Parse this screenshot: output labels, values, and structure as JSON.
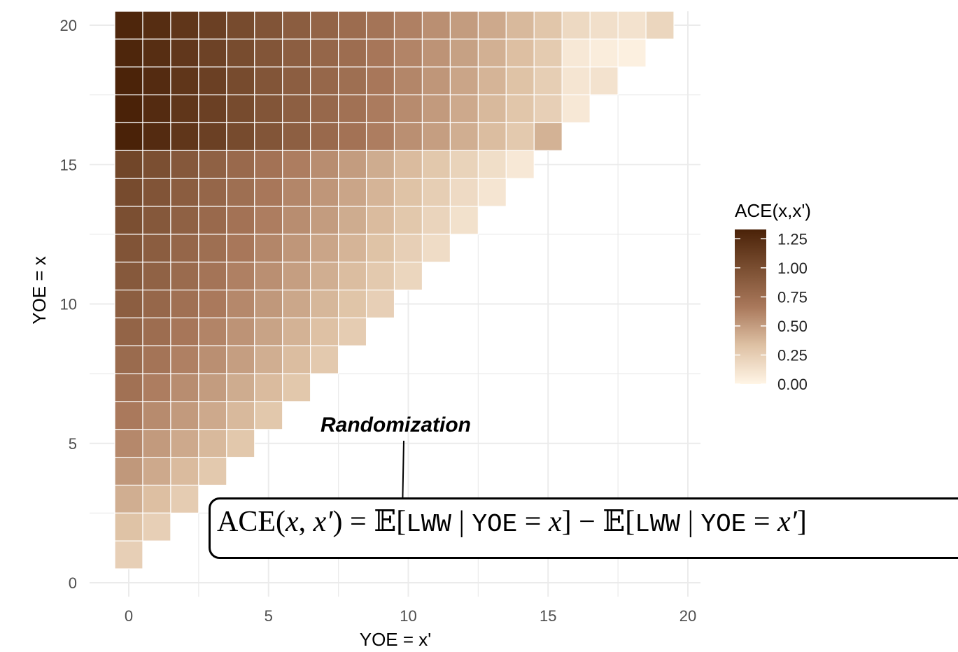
{
  "chart_data": {
    "type": "heatmap",
    "title": "",
    "xlabel": "YOE = x'",
    "ylabel": "YOE = x",
    "x_range": [
      0,
      20
    ],
    "y_range": [
      0,
      20
    ],
    "x_ticks": [
      "0",
      "5",
      "10",
      "15",
      "20"
    ],
    "y_ticks": [
      "0",
      "5",
      "10",
      "15",
      "20"
    ],
    "grid": true,
    "legend": {
      "title": "ACE(x,x')",
      "placement": "right",
      "labels": [
        "1.25",
        "1.00",
        "0.75",
        "0.50",
        "0.25",
        "0.00"
      ],
      "range": [
        0,
        1.33
      ],
      "colors": {
        "low": "#FFF5E6",
        "high": "#4A2208"
      }
    },
    "value_rule": "cell (x', x) drawn only for x' < x",
    "rows": [
      {
        "y": 20,
        "values": [
          1.3,
          1.25,
          1.18,
          1.1,
          1.02,
          0.95,
          0.88,
          0.82,
          0.76,
          0.7,
          0.63,
          0.56,
          0.5,
          0.44,
          0.37,
          0.3,
          0.18,
          0.14,
          0.12,
          0.2
        ]
      },
      {
        "y": 19,
        "values": [
          1.3,
          1.24,
          1.17,
          1.09,
          1.01,
          0.94,
          0.87,
          0.81,
          0.75,
          0.68,
          0.61,
          0.54,
          0.48,
          0.41,
          0.34,
          0.27,
          0.08,
          0.05,
          0.03
        ]
      },
      {
        "y": 18,
        "values": [
          1.32,
          1.26,
          1.18,
          1.1,
          1.02,
          0.94,
          0.87,
          0.8,
          0.74,
          0.67,
          0.6,
          0.53,
          0.46,
          0.39,
          0.32,
          0.25,
          0.1,
          0.12
        ]
      },
      {
        "y": 17,
        "values": [
          1.33,
          1.26,
          1.18,
          1.1,
          1.02,
          0.94,
          0.86,
          0.79,
          0.72,
          0.65,
          0.58,
          0.51,
          0.44,
          0.37,
          0.3,
          0.24,
          0.08
        ]
      },
      {
        "y": 16,
        "values": [
          1.33,
          1.26,
          1.18,
          1.1,
          1.02,
          0.94,
          0.86,
          0.78,
          0.71,
          0.64,
          0.56,
          0.49,
          0.42,
          0.35,
          0.28,
          0.4
        ]
      },
      {
        "y": 15,
        "values": [
          1.06,
          0.99,
          0.92,
          0.85,
          0.78,
          0.71,
          0.64,
          0.57,
          0.5,
          0.43,
          0.36,
          0.29,
          0.22,
          0.15,
          0.08
        ]
      },
      {
        "y": 14,
        "values": [
          1.02,
          0.95,
          0.88,
          0.81,
          0.74,
          0.67,
          0.6,
          0.53,
          0.46,
          0.39,
          0.32,
          0.25,
          0.17,
          0.1
        ]
      },
      {
        "y": 13,
        "values": [
          0.99,
          0.92,
          0.85,
          0.78,
          0.71,
          0.64,
          0.57,
          0.5,
          0.43,
          0.36,
          0.29,
          0.21,
          0.13
        ]
      },
      {
        "y": 12,
        "values": [
          0.95,
          0.88,
          0.81,
          0.74,
          0.67,
          0.6,
          0.53,
          0.46,
          0.39,
          0.32,
          0.24,
          0.16
        ]
      },
      {
        "y": 11,
        "values": [
          0.91,
          0.84,
          0.77,
          0.7,
          0.63,
          0.56,
          0.49,
          0.42,
          0.35,
          0.28,
          0.2
        ]
      },
      {
        "y": 10,
        "values": [
          0.87,
          0.8,
          0.73,
          0.66,
          0.59,
          0.52,
          0.45,
          0.38,
          0.31,
          0.24
        ]
      },
      {
        "y": 9,
        "values": [
          0.82,
          0.75,
          0.68,
          0.61,
          0.54,
          0.47,
          0.4,
          0.33,
          0.26
        ]
      },
      {
        "y": 8,
        "values": [
          0.77,
          0.7,
          0.63,
          0.56,
          0.49,
          0.42,
          0.35,
          0.28
        ]
      },
      {
        "y": 7,
        "values": [
          0.72,
          0.64,
          0.57,
          0.5,
          0.43,
          0.36,
          0.29
        ]
      },
      {
        "y": 6,
        "values": [
          0.66,
          0.58,
          0.51,
          0.44,
          0.37,
          0.29
        ]
      },
      {
        "y": 5,
        "values": [
          0.59,
          0.51,
          0.44,
          0.37,
          0.29
        ]
      },
      {
        "y": 4,
        "values": [
          0.52,
          0.44,
          0.36,
          0.28
        ]
      },
      {
        "y": 3,
        "values": [
          0.42,
          0.34,
          0.26
        ]
      },
      {
        "y": 2,
        "values": [
          0.32,
          0.24
        ]
      },
      {
        "y": 1,
        "values": [
          0.24
        ]
      }
    ]
  },
  "annotation": {
    "label": "Randomization",
    "formula_parts": [
      "ACE(",
      "x",
      ", ",
      "x′",
      ") = ",
      "𝔼",
      "[",
      "LWW",
      " | ",
      "YOE",
      " = ",
      "x",
      "] − ",
      "𝔼",
      "[",
      "LWW",
      " | ",
      "YOE",
      " = ",
      "x′",
      "]"
    ]
  }
}
